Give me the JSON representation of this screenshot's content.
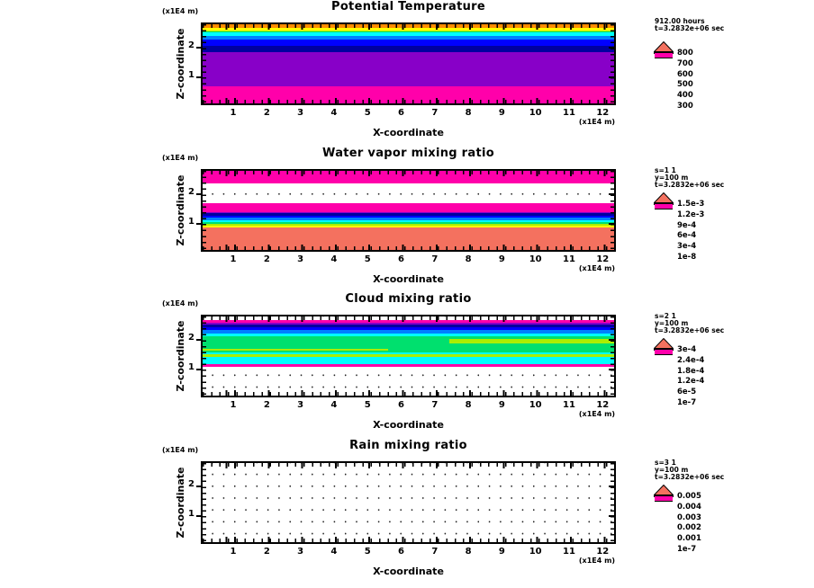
{
  "figure": {
    "background": "#ffffff"
  },
  "panels": [
    {
      "title": "Potential Temperature",
      "y_axis_unit": "(x1E4 m)",
      "y_axis_label": "Z-coordinate",
      "y_ticks": [
        "2",
        "1"
      ],
      "x_axis_label": "X-coordinate",
      "x_axis_unit": "(x1E4 m)",
      "x_ticks": [
        "1",
        "2",
        "3",
        "4",
        "5",
        "6",
        "7",
        "8",
        "9",
        "10",
        "11",
        "12"
      ],
      "legend": {
        "header_lines": [
          "912.00 hours",
          "t=3.2832e+06 sec"
        ],
        "tick_labels": [
          "800",
          "700",
          "600",
          "500",
          "400",
          "300"
        ],
        "over_color": "#f4715f",
        "segment_colors": [
          "#ff8c00",
          "#ffff00",
          "#aaee00",
          "#00e06e",
          "#00ffff",
          "#0080ff",
          "#0000ff",
          "#0000a0",
          "#8800c8",
          "#ff00aa"
        ]
      }
    },
    {
      "title": "Water vapor mixing ratio",
      "y_axis_unit": "(x1E4 m)",
      "y_axis_label": "Z-coordinate",
      "y_ticks": [
        "2",
        "1"
      ],
      "x_axis_label": "X-coordinate",
      "x_axis_unit": "(x1E4 m)",
      "x_ticks": [
        "1",
        "2",
        "3",
        "4",
        "5",
        "6",
        "7",
        "8",
        "9",
        "10",
        "11",
        "12"
      ],
      "legend": {
        "header_lines": [
          "s=1 1",
          "y=100 m",
          "t=3.2832e+06 sec"
        ],
        "tick_labels": [
          "1.5e-3",
          "1.2e-3",
          "9e-4",
          "6e-4",
          "3e-4",
          "1e-8"
        ],
        "over_color": "#f4715f",
        "segment_colors": [
          "#ff8c00",
          "#ffff00",
          "#aaee00",
          "#00e06e",
          "#00ffff",
          "#0080ff",
          "#0000ff",
          "#0000a0",
          "#8800c8",
          "#ff00aa"
        ]
      }
    },
    {
      "title": "Cloud mixing ratio",
      "y_axis_unit": "(x1E4 m)",
      "y_axis_label": "Z-coordinate",
      "y_ticks": [
        "2",
        "1"
      ],
      "x_axis_label": "X-coordinate",
      "x_axis_unit": "(x1E4 m)",
      "x_ticks": [
        "1",
        "2",
        "3",
        "4",
        "5",
        "6",
        "7",
        "8",
        "9",
        "10",
        "11",
        "12"
      ],
      "legend": {
        "header_lines": [
          "s=2 1",
          "y=100 m",
          "t=3.2832e+06 sec"
        ],
        "tick_labels": [
          "3e-4",
          "2.4e-4",
          "1.8e-4",
          "1.2e-4",
          "6e-5",
          "1e-7"
        ],
        "over_color": "#f4715f",
        "segment_colors": [
          "#ff8c00",
          "#ffff00",
          "#aaee00",
          "#00e06e",
          "#00ffff",
          "#0080ff",
          "#0000ff",
          "#0000a0",
          "#8800c8",
          "#ff00aa"
        ]
      }
    },
    {
      "title": "Rain mixing ratio",
      "y_axis_unit": "(x1E4 m)",
      "y_axis_label": "Z-coordinate",
      "y_ticks": [
        "2",
        "1"
      ],
      "x_axis_label": "X-coordinate",
      "x_axis_unit": "(x1E4 m)",
      "x_ticks": [
        "1",
        "2",
        "3",
        "4",
        "5",
        "6",
        "7",
        "8",
        "9",
        "10",
        "11",
        "12"
      ],
      "legend": {
        "header_lines": [
          "s=3 1",
          "y=100 m",
          "t=3.2832e+06 sec"
        ],
        "tick_labels": [
          "0.005",
          "0.004",
          "0.003",
          "0.002",
          "0.001",
          "1e-7"
        ],
        "over_color": "#f4715f",
        "segment_colors": [
          "#ff8c00",
          "#ffff00",
          "#aaee00",
          "#00e06e",
          "#00ffff",
          "#0080ff",
          "#0000ff",
          "#0000a0",
          "#8800c8",
          "#ff00aa"
        ]
      }
    }
  ],
  "chart_data": [
    {
      "type": "contour",
      "id": "potential-temperature",
      "title": "Potential Temperature",
      "xlabel": "X-coordinate (x1E4 m)",
      "ylabel": "Z-coordinate (x1E4 m)",
      "x_range": [
        0,
        12.4
      ],
      "z_range": [
        0,
        2.8
      ],
      "levels": [
        300,
        350,
        400,
        450,
        500,
        550,
        600,
        650,
        700,
        750,
        800
      ],
      "over_level": "> 800",
      "dot_grid": true,
      "bands": [
        {
          "color": "#ff00aa",
          "z_from": 0.0,
          "z_to": 0.61
        },
        {
          "color": "#8800c8",
          "z_from": 0.61,
          "z_to": 1.82
        },
        {
          "color": "#0000a0",
          "z_from": 1.82,
          "z_to": 2.04
        },
        {
          "color": "#0000ff",
          "z_from": 2.04,
          "z_to": 2.25
        },
        {
          "color": "#0080ff",
          "z_from": 2.25,
          "z_to": 2.4
        },
        {
          "color": "#00ffff",
          "z_from": 2.4,
          "z_to": 2.51
        },
        {
          "color": "#00e06e",
          "z_from": 2.51,
          "z_to": 2.53
        },
        {
          "color": "#aaee00",
          "z_from": 2.53,
          "z_to": 2.58
        },
        {
          "color": "#ffff00",
          "z_from": 2.58,
          "z_to": 2.67
        },
        {
          "color": "#ff8c00",
          "z_from": 2.67,
          "z_to": 2.8
        }
      ]
    },
    {
      "type": "contour",
      "id": "water-vapor-mixing-ratio",
      "title": "Water vapor mixing ratio",
      "xlabel": "X-coordinate (x1E4 m)",
      "ylabel": "Z-coordinate (x1E4 m)",
      "x_range": [
        0,
        12.4
      ],
      "z_range": [
        0,
        2.8
      ],
      "levels": [
        1e-08,
        0.00015,
        0.0003,
        0.00045,
        0.0006,
        0.00075,
        0.0009,
        0.00105,
        0.0012,
        0.00135,
        0.0015
      ],
      "over_level": "> 1.5e-3",
      "dot_grid": true,
      "bands": [
        {
          "color": "#f4715f",
          "z_from": 0.0,
          "z_to": 0.8
        },
        {
          "color": "#ffff00",
          "z_from": 0.8,
          "z_to": 0.86
        },
        {
          "color": "#aaee00",
          "z_from": 0.86,
          "z_to": 0.92
        },
        {
          "color": "#00e06e",
          "z_from": 0.92,
          "z_to": 0.98
        },
        {
          "color": "#00ffff",
          "z_from": 0.98,
          "z_to": 1.06
        },
        {
          "color": "#0080ff",
          "z_from": 1.06,
          "z_to": 1.14
        },
        {
          "color": "#0000ff",
          "z_from": 1.14,
          "z_to": 1.21
        },
        {
          "color": "#0000a0",
          "z_from": 1.21,
          "z_to": 1.3
        },
        {
          "color": "#8800c8",
          "z_from": 1.3,
          "z_to": 1.35
        },
        {
          "color": "#ff00aa",
          "z_from": 1.35,
          "z_to": 1.64
        },
        {
          "color": "#ff00aa",
          "z_from": 2.34,
          "z_to": 2.8
        }
      ]
    },
    {
      "type": "contour",
      "id": "cloud-mixing-ratio",
      "title": "Cloud mixing ratio",
      "xlabel": "X-coordinate (x1E4 m)",
      "ylabel": "Z-coordinate (x1E4 m)",
      "x_range": [
        0,
        12.4
      ],
      "z_range": [
        0,
        2.8
      ],
      "levels": [
        1e-07,
        3e-05,
        6e-05,
        9e-05,
        0.00012,
        0.00015,
        0.00018,
        0.00021,
        0.00024,
        0.00027,
        0.0003
      ],
      "over_level": "> 3e-4",
      "dot_grid": true,
      "bands": [
        {
          "color": "#ff00aa",
          "z_from": 1.03,
          "z_to": 1.1
        },
        {
          "color": "#00ffff",
          "z_from": 1.1,
          "z_to": 1.38
        },
        {
          "color": "#aaee00",
          "z_from": 1.38,
          "z_to": 1.46
        },
        {
          "color": "#00ffff",
          "z_from": 1.46,
          "z_to": 1.52
        },
        {
          "color": "#00e06e",
          "z_from": 1.52,
          "z_to": 2.1
        },
        {
          "color": "#aaee00",
          "z_from": 1.58,
          "z_to": 1.66,
          "x_from": 0.0,
          "x_to": 0.45
        },
        {
          "color": "#aaee00",
          "z_from": 1.86,
          "z_to": 2.0,
          "x_from": 0.6,
          "x_to": 1.0
        },
        {
          "color": "#00ffff",
          "z_from": 2.1,
          "z_to": 2.2
        },
        {
          "color": "#0080ff",
          "z_from": 2.2,
          "z_to": 2.32
        },
        {
          "color": "#0000ff",
          "z_from": 2.32,
          "z_to": 2.42
        },
        {
          "color": "#0000a0",
          "z_from": 2.42,
          "z_to": 2.52
        },
        {
          "color": "#8800c8",
          "z_from": 2.52,
          "z_to": 2.57
        },
        {
          "color": "#ff00aa",
          "z_from": 2.57,
          "z_to": 2.68
        }
      ]
    },
    {
      "type": "contour",
      "id": "rain-mixing-ratio",
      "title": "Rain mixing ratio",
      "xlabel": "X-coordinate (x1E4 m)",
      "ylabel": "Z-coordinate (x1E4 m)",
      "x_range": [
        0,
        12.4
      ],
      "z_range": [
        0,
        2.8
      ],
      "levels": [
        1e-07,
        0.0005,
        0.001,
        0.0015,
        0.002,
        0.0025,
        0.003,
        0.0035,
        0.004,
        0.0045,
        0.005
      ],
      "over_level": "> 0.005",
      "dot_grid": true,
      "bands": []
    }
  ]
}
